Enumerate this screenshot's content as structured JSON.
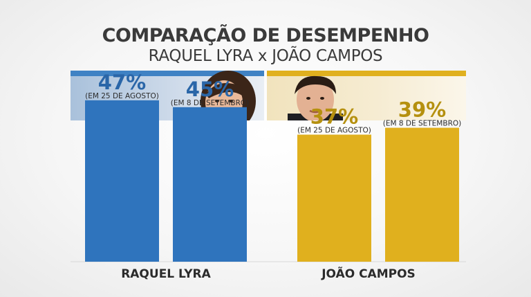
{
  "title": "COMPARAÇÃO DE DESEMPENHO",
  "subtitle": "RAQUEL LYRA x JOÃO CAMPOS",
  "colors": {
    "raquel": "#2f74bd",
    "joao": "#e0b01e",
    "raquel_text": "#2a66a8",
    "joao_text": "#b5900f"
  },
  "chart_data": {
    "type": "bar",
    "ylim": [
      0,
      50
    ],
    "groups": [
      {
        "name": "RAQUEL LYRA",
        "bars": [
          {
            "value": 47,
            "value_label": "47%",
            "date_label": "(EM 25 DE AGOSTO)"
          },
          {
            "value": 45,
            "value_label": "45%",
            "date_label": "(EM 8 DE SETEMBRO)"
          }
        ]
      },
      {
        "name": "JOÃO CAMPOS",
        "bars": [
          {
            "value": 37,
            "value_label": "37%",
            "date_label": "(EM 25 DE AGOSTO)"
          },
          {
            "value": 39,
            "value_label": "39%",
            "date_label": "(EM 8 DE SETEMBRO)"
          }
        ]
      }
    ]
  }
}
